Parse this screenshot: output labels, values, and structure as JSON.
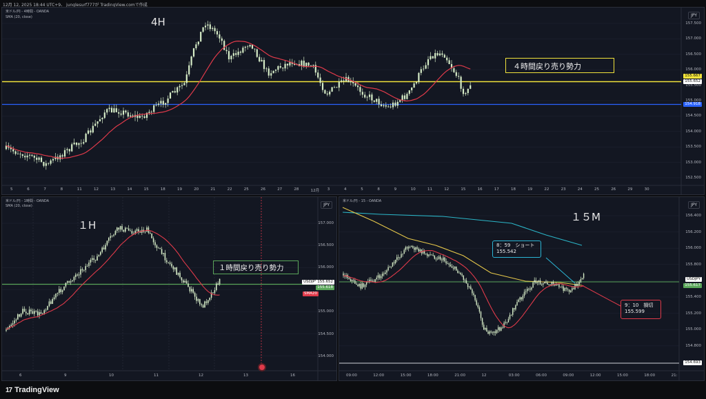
{
  "header": {
    "meta": "12月 12, 2025 18:44 UTC+9、 junglesurf777が TradingView.comで作成"
  },
  "panel_4h": {
    "symbol": "米ドル/円 - 4時間 - OANDA",
    "indicator": "SMA (20, close)",
    "label": "4H",
    "annotation": "４時間戻り売り勢力",
    "currency": "JPY",
    "price_levels": [
      "157.500",
      "157.000",
      "156.500",
      "156.000",
      "155.500",
      "155.000",
      "154.500",
      "154.000",
      "153.500",
      "153.000",
      "152.500"
    ],
    "dates": [
      "5",
      "6",
      "7",
      "8",
      "11",
      "12",
      "13",
      "14",
      "15",
      "18",
      "19",
      "20",
      "21",
      "22",
      "25",
      "26",
      "27",
      "28",
      "12月",
      "3",
      "4",
      "5",
      "8",
      "9",
      "10",
      "11",
      "12",
      "15",
      "16",
      "17",
      "18",
      "19",
      "22",
      "23",
      "24",
      "25",
      "26",
      "29",
      "30"
    ],
    "tags": {
      "yellow_price": "155.667",
      "current_price": "155.652",
      "blue_price": "154.918"
    },
    "colors": {
      "yellow_line": "#f2e33b",
      "blue_line": "#2962ff",
      "sma": "#e03a4a",
      "candle": "#d6ecc7"
    }
  },
  "panel_1h": {
    "symbol": "米ドル/円 - 1時間 - OANDA",
    "indicator": "SMA (20, close)",
    "label": "１H",
    "annotation": "１時間戻り売り勢力",
    "currency": "JPY",
    "price_levels": [
      "157.000",
      "156.500",
      "156.000",
      "155.500",
      "155.000",
      "154.500",
      "154.000"
    ],
    "dates": [
      "6",
      "9",
      "10",
      "11",
      "12",
      "13",
      "16"
    ],
    "tags": {
      "symbol_tag": "USDJPY",
      "current_price": "155.652",
      "green_price": "155.618",
      "sma_tag": "SMA20"
    },
    "colors": {
      "green_line": "#5aa65a",
      "sma": "#e03a4a"
    }
  },
  "panel_15m": {
    "symbol": "米ドル/円 - 15 - OANDA",
    "label": "１５M",
    "currency": "JPY",
    "price_levels": [
      "156.400",
      "156.200",
      "156.000",
      "155.800",
      "155.600",
      "155.400",
      "155.200",
      "155.000",
      "154.800"
    ],
    "times": [
      "09:00",
      "12:00",
      "15:00",
      "18:00",
      "21:00",
      "12",
      "03:00",
      "06:00",
      "09:00",
      "12:00",
      "15:00",
      "18:00",
      "21:"
    ],
    "short_note": {
      "line1": "8：59　ショート",
      "line2": "155.542"
    },
    "cut_note": {
      "line1": "9：10　損切",
      "line2": "155.599"
    },
    "tags": {
      "symbol_tag": "USDJPY",
      "current_price": "155.617",
      "white_price": "154.693"
    },
    "colors": {
      "cyan_note": "#2bb6d6",
      "red_note": "#e03a4a",
      "yellow_ma": "#e6c84a",
      "cyan_ma": "#2bb6c8",
      "sma": "#e03a4a"
    }
  },
  "footer": {
    "brand": "TradingView"
  }
}
